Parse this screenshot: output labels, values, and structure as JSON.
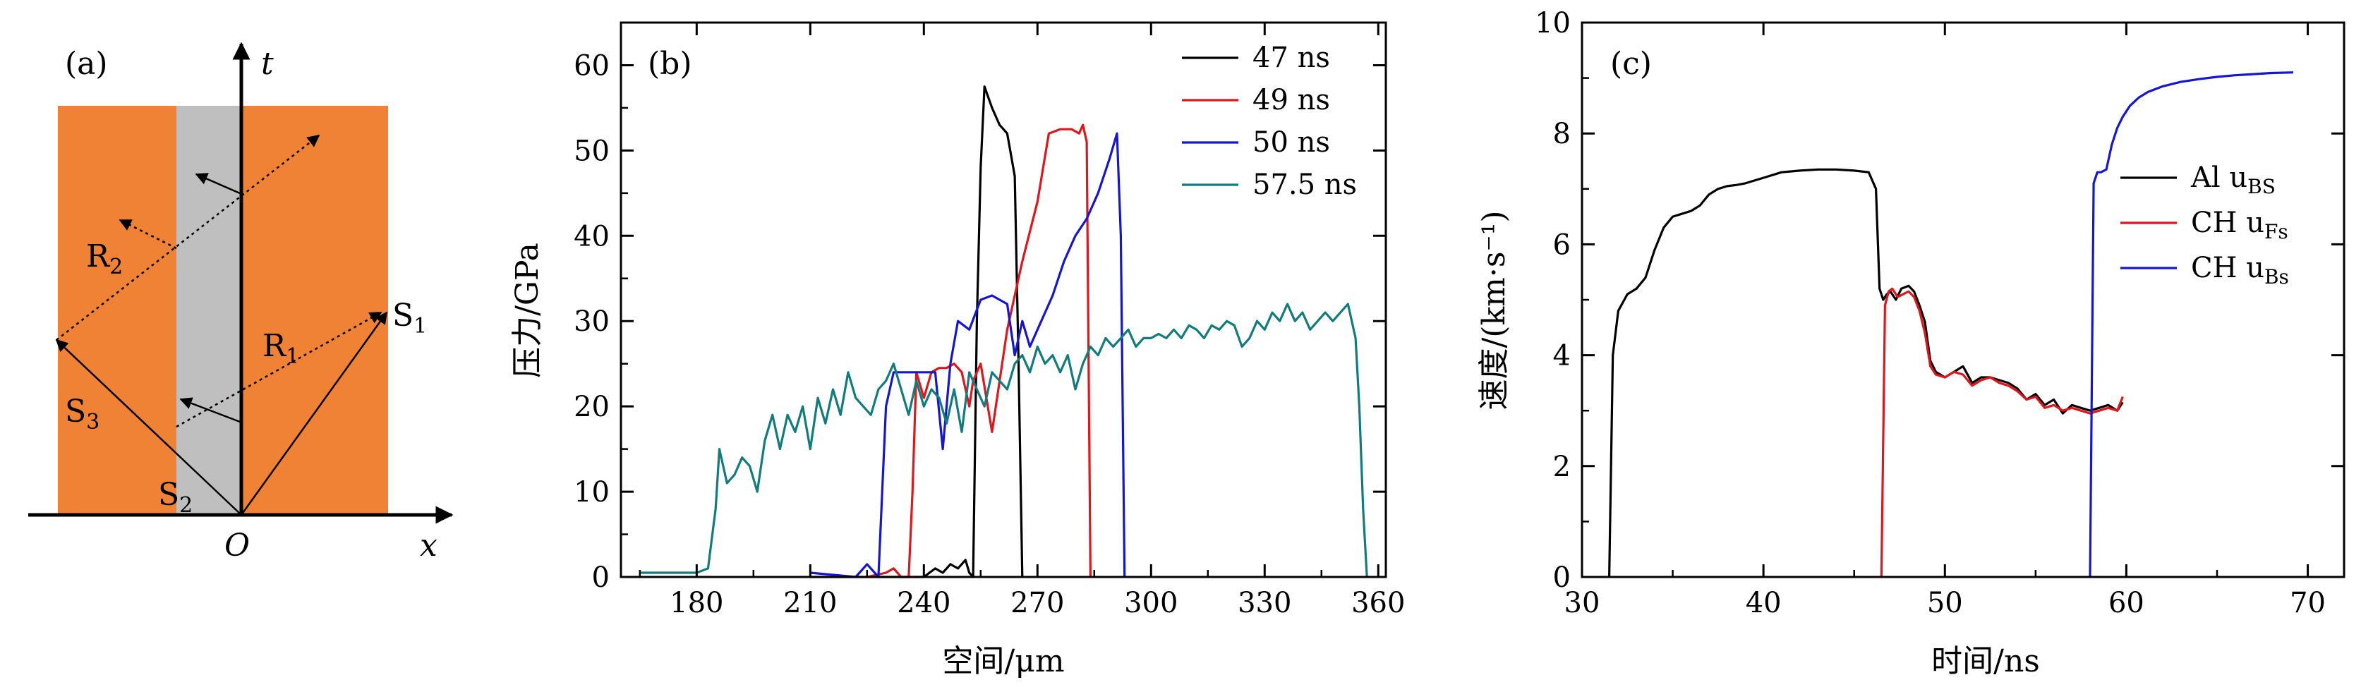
{
  "panel_a": {
    "label": "(a)",
    "t_axis": "t",
    "x_axis": "x",
    "origin": "O",
    "colors": {
      "material": "#ef8234",
      "gap": "#bfbfbf"
    },
    "waves": [
      {
        "id": "S1",
        "main": "S",
        "sub": "1"
      },
      {
        "id": "S2",
        "main": "S",
        "sub": "2"
      },
      {
        "id": "S3",
        "main": "S",
        "sub": "3"
      },
      {
        "id": "R1",
        "main": "R",
        "sub": "1"
      },
      {
        "id": "R2",
        "main": "R",
        "sub": "2"
      }
    ]
  },
  "chart_data": [
    {
      "id": "b",
      "type": "line",
      "panel_label": "(b)",
      "xlabel": "空间/μm",
      "ylabel": "压力/GPa",
      "xlim": [
        160,
        362
      ],
      "ylim": [
        0,
        65
      ],
      "xticks": [
        180,
        210,
        240,
        270,
        300,
        330,
        360
      ],
      "yticks": [
        0,
        10,
        20,
        30,
        40,
        50,
        60
      ],
      "legend_position": "top-right",
      "series": [
        {
          "name": "47 ns",
          "color": "#000000",
          "x": [
            210,
            240,
            243,
            245,
            247,
            249,
            251,
            252,
            253,
            254,
            255,
            256,
            258,
            260,
            262,
            264,
            265,
            266
          ],
          "y": [
            0,
            0,
            1,
            0.5,
            1.5,
            1,
            2,
            0.5,
            0,
            30,
            48,
            57.5,
            55,
            53,
            52,
            47,
            25,
            0
          ]
        },
        {
          "name": "49 ns",
          "color": "#e0161c",
          "x": [
            225,
            230,
            232,
            234,
            236,
            237,
            238,
            240,
            242,
            244,
            246,
            248,
            250,
            252,
            253,
            255,
            258,
            262,
            266,
            270,
            273,
            276,
            279,
            281,
            282,
            283,
            284
          ],
          "y": [
            0,
            0.5,
            1,
            0,
            0,
            10,
            24,
            21,
            24,
            24.5,
            24.5,
            25,
            24,
            20,
            23,
            25,
            17,
            29,
            37,
            44,
            52,
            52.5,
            52.5,
            52,
            53,
            51,
            0
          ]
        },
        {
          "name": "50 ns",
          "color": "#1515d2",
          "x": [
            210,
            222,
            225,
            228,
            230,
            232,
            235,
            240,
            243,
            245,
            247,
            249,
            252,
            255,
            258,
            262,
            264,
            266,
            268,
            271,
            274,
            277,
            280,
            283,
            286,
            289,
            291,
            292,
            293
          ],
          "y": [
            0.5,
            0,
            1.5,
            0,
            20,
            24,
            24,
            24,
            24,
            15,
            25,
            30,
            29,
            32.5,
            33,
            32,
            26,
            30,
            27,
            30,
            33,
            37,
            40,
            42,
            45,
            49,
            52,
            40,
            0
          ]
        },
        {
          "name": "57.5 ns",
          "color": "#107c7c",
          "x": [
            165,
            180,
            183,
            185,
            186,
            188,
            190,
            192,
            194,
            196,
            198,
            200,
            202,
            204,
            206,
            208,
            210,
            212,
            214,
            216,
            218,
            220,
            222,
            224,
            226,
            228,
            230,
            232,
            234,
            236,
            238,
            240,
            242,
            244,
            246,
            248,
            250,
            252,
            254,
            256,
            258,
            260,
            262,
            264,
            266,
            268,
            270,
            272,
            274,
            276,
            278,
            280,
            282,
            284,
            286,
            288,
            290,
            292,
            294,
            296,
            298,
            300,
            302,
            304,
            306,
            308,
            310,
            312,
            314,
            316,
            318,
            320,
            322,
            324,
            326,
            328,
            330,
            332,
            334,
            336,
            338,
            340,
            342,
            344,
            346,
            348,
            350,
            352,
            354,
            355,
            356,
            357
          ],
          "y": [
            0.5,
            0.5,
            1,
            8,
            15,
            11,
            12,
            14,
            13,
            10,
            16,
            19,
            15,
            19,
            17,
            20,
            15,
            21,
            18,
            22,
            19,
            24,
            21,
            20,
            19,
            22,
            23,
            25,
            22,
            19,
            23,
            20,
            22,
            21,
            18,
            22,
            17,
            24,
            22,
            20,
            24,
            23,
            22,
            25,
            26,
            24,
            27,
            25,
            26,
            24,
            26,
            22,
            25,
            27,
            26,
            28,
            27,
            28,
            29,
            27,
            28,
            28,
            28.5,
            28,
            29,
            28,
            29.5,
            29,
            28,
            29.5,
            29,
            30,
            29.5,
            27,
            28,
            30,
            29,
            31,
            30,
            32,
            30,
            31,
            29,
            30,
            31,
            30,
            31,
            32,
            28,
            20,
            8,
            0
          ]
        }
      ]
    },
    {
      "id": "c",
      "type": "line",
      "panel_label": "(c)",
      "xlabel": "时间/ns",
      "ylabel": "速度/(km·s⁻¹)",
      "xlim": [
        30,
        72
      ],
      "ylim": [
        0,
        10
      ],
      "xticks": [
        30,
        40,
        50,
        60,
        70
      ],
      "yticks": [
        0,
        2,
        4,
        6,
        8,
        10
      ],
      "legend_position": "right",
      "series": [
        {
          "name": "Al uBS",
          "label_main": "Al u",
          "label_sub": "BS",
          "color": "#000000",
          "x": [
            31.5,
            31.7,
            32,
            32.5,
            33,
            33.5,
            34,
            34.5,
            35,
            35.5,
            36,
            36.5,
            37,
            37.5,
            38,
            38.5,
            39,
            40,
            41,
            42,
            43,
            44,
            45,
            45.8,
            46.2,
            46.4,
            46.6,
            46.8,
            47,
            47.3,
            47.6,
            48,
            48.3,
            48.6,
            48.9,
            49.2,
            49.5,
            50,
            50.5,
            51,
            51.5,
            52,
            52.5,
            53,
            53.5,
            54,
            54.5,
            55,
            55.5,
            56,
            56.5,
            57,
            57.5,
            58,
            58.5,
            59,
            59.5,
            59.8
          ],
          "y": [
            0,
            4,
            4.8,
            5.1,
            5.2,
            5.4,
            5.9,
            6.3,
            6.5,
            6.55,
            6.6,
            6.7,
            6.9,
            7.0,
            7.05,
            7.07,
            7.1,
            7.2,
            7.3,
            7.33,
            7.35,
            7.35,
            7.33,
            7.3,
            7.0,
            5.2,
            5.0,
            5.1,
            5.15,
            5.0,
            5.2,
            5.25,
            5.15,
            4.9,
            4.6,
            3.9,
            3.7,
            3.6,
            3.7,
            3.8,
            3.5,
            3.6,
            3.6,
            3.55,
            3.5,
            3.4,
            3.2,
            3.3,
            3.1,
            3.2,
            2.95,
            3.1,
            3.05,
            3.0,
            3.05,
            3.1,
            3.0,
            3.15
          ]
        },
        {
          "name": "CH uFs",
          "label_main": "CH u",
          "label_sub": "Fs",
          "color": "#e0161c",
          "x": [
            46.5,
            46.7,
            46.9,
            47.1,
            47.4,
            47.7,
            48,
            48.3,
            48.6,
            48.9,
            49.2,
            49.5,
            50,
            50.5,
            51,
            51.5,
            52,
            52.5,
            53,
            53.5,
            54,
            54.5,
            55,
            55.5,
            56,
            56.5,
            57,
            57.5,
            58,
            58.5,
            59,
            59.5,
            59.8
          ],
          "y": [
            0,
            4.9,
            5.15,
            5.2,
            5.05,
            5.1,
            5.15,
            5.05,
            4.8,
            4.4,
            3.8,
            3.65,
            3.6,
            3.7,
            3.65,
            3.45,
            3.55,
            3.6,
            3.5,
            3.45,
            3.35,
            3.2,
            3.25,
            3.05,
            3.1,
            3.0,
            3.05,
            3.0,
            2.95,
            3.0,
            3.05,
            3.0,
            3.25
          ]
        },
        {
          "name": "CH uBs",
          "label_main": "CH u",
          "label_sub": "Bs",
          "color": "#1515d2",
          "x": [
            58.0,
            58.2,
            58.4,
            58.6,
            58.9,
            59.2,
            59.5,
            59.8,
            60.2,
            60.7,
            61.2,
            62,
            63,
            64,
            65,
            66,
            67,
            68,
            69.2
          ],
          "y": [
            0,
            7.1,
            7.3,
            7.3,
            7.35,
            7.8,
            8.1,
            8.3,
            8.5,
            8.65,
            8.75,
            8.85,
            8.93,
            8.98,
            9.02,
            9.05,
            9.07,
            9.09,
            9.1
          ]
        }
      ]
    }
  ]
}
